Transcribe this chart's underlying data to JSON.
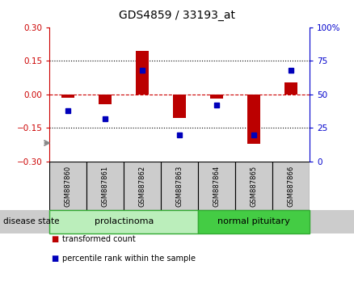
{
  "title": "GDS4859 / 33193_at",
  "samples": [
    "GSM887860",
    "GSM887861",
    "GSM887862",
    "GSM887863",
    "GSM887864",
    "GSM887865",
    "GSM887866"
  ],
  "transformed_count": [
    -0.015,
    -0.045,
    0.195,
    -0.105,
    -0.02,
    -0.22,
    0.055
  ],
  "percentile_rank": [
    38,
    32,
    68,
    20,
    42,
    20,
    68
  ],
  "ylim_left": [
    -0.3,
    0.3
  ],
  "ylim_right": [
    0,
    100
  ],
  "yticks_left": [
    -0.3,
    -0.15,
    0,
    0.15,
    0.3
  ],
  "yticks_right": [
    0,
    25,
    50,
    75,
    100
  ],
  "hlines_dotted": [
    -0.15,
    0.15
  ],
  "bar_color": "#bb0000",
  "dot_color": "#0000bb",
  "bar_width": 0.35,
  "dot_size": 5,
  "groups": [
    {
      "label": "prolactinoma",
      "indices": [
        0,
        1,
        2,
        3
      ],
      "color": "#bbeebb",
      "edge_color": "#33aa33"
    },
    {
      "label": "normal pituitary",
      "indices": [
        4,
        5,
        6
      ],
      "color": "#44cc44",
      "edge_color": "#33aa33"
    }
  ],
  "legend_items": [
    {
      "label": "transformed count",
      "color": "#bb0000"
    },
    {
      "label": "percentile rank within the sample",
      "color": "#0000bb"
    }
  ],
  "disease_state_label": "disease state",
  "background_color": "#ffffff",
  "plot_bg_color": "#ffffff",
  "left_tick_color": "#cc0000",
  "right_tick_color": "#0000cc",
  "zero_line_color": "#cc0000",
  "sample_box_color": "#cccccc",
  "disease_box_color": "#cccccc"
}
